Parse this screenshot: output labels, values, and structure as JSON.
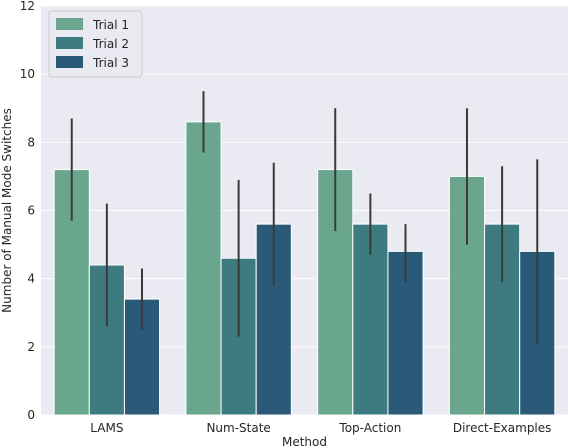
{
  "chart_data": {
    "type": "bar",
    "title": "",
    "xlabel": "Method",
    "ylabel": "Number of Manual Mode Switches",
    "ylim": [
      0,
      12
    ],
    "yticks": [
      0,
      2,
      4,
      6,
      8,
      10,
      12
    ],
    "grid": "horizontal",
    "background": "#eaeaf2",
    "legend_position": "top-left",
    "error_bars": true,
    "categories": [
      "LAMS",
      "Num-State",
      "Top-Action",
      "Direct-Examples"
    ],
    "series": [
      {
        "name": "Trial 1",
        "color": "#6aa68e",
        "values": [
          7.2,
          8.6,
          7.2,
          7.0
        ],
        "error_low": [
          5.7,
          7.7,
          5.4,
          5.0
        ],
        "error_high": [
          8.7,
          9.5,
          9.0,
          9.0
        ]
      },
      {
        "name": "Trial 2",
        "color": "#3d7b81",
        "values": [
          4.4,
          4.6,
          5.6,
          5.6
        ],
        "error_low": [
          2.6,
          2.3,
          4.7,
          3.9
        ],
        "error_high": [
          6.2,
          6.9,
          6.5,
          7.3
        ]
      },
      {
        "name": "Trial 3",
        "color": "#2b5a78",
        "values": [
          3.4,
          5.6,
          4.8,
          4.8
        ],
        "error_low": [
          2.5,
          3.8,
          3.9,
          2.1
        ],
        "error_high": [
          4.3,
          7.4,
          5.6,
          7.5
        ]
      }
    ]
  }
}
